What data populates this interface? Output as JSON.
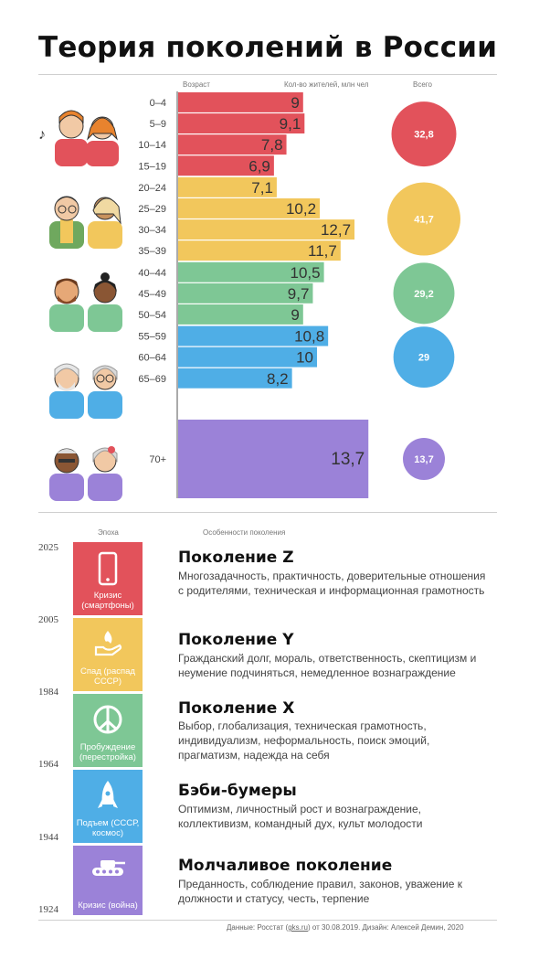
{
  "title": "Теория поколений в России",
  "chart_header": {
    "age": "Возраст",
    "population": "Кол-во жителей, млн чел",
    "total": "Всего"
  },
  "chart_data": {
    "type": "bar",
    "categories": [
      "0–4",
      "5–9",
      "10–14",
      "15–19",
      "20–24",
      "25–29",
      "30–34",
      "35–39",
      "40–44",
      "45–49",
      "50–54",
      "55–59",
      "60–64",
      "65–69",
      "70+"
    ],
    "values": [
      9,
      9.1,
      7.8,
      6.9,
      7.1,
      10.2,
      12.7,
      11.7,
      10.5,
      9.7,
      9,
      10.8,
      10,
      8.2,
      13.7
    ],
    "value_labels": [
      "9",
      "9,1",
      "7,8",
      "6,9",
      "7,1",
      "10,2",
      "12,7",
      "11,7",
      "10,5",
      "9,7",
      "9",
      "10,8",
      "10",
      "8,2",
      "13,7"
    ],
    "xlabel": "Кол-во жителей, млн чел",
    "ylabel": "Возраст",
    "groups": [
      {
        "from": 0,
        "to": 3,
        "color": "#e2525b",
        "total": 32.8,
        "total_label": "32,8"
      },
      {
        "from": 4,
        "to": 7,
        "color": "#f2c75c",
        "total": 41.7,
        "total_label": "41,7"
      },
      {
        "from": 8,
        "to": 10,
        "color": "#7ec795",
        "total": 29.2,
        "total_label": "29,2"
      },
      {
        "from": 11,
        "to": 13,
        "color": "#4faee6",
        "total": 29,
        "total_label": "29"
      },
      {
        "from": 14,
        "to": 14,
        "color": "#9b82d8",
        "total": 13.7,
        "total_label": "13,7"
      }
    ]
  },
  "section_header": {
    "era": "Эпоха",
    "features": "Особенности поколения"
  },
  "years": [
    "2025",
    "2005",
    "1984",
    "1964",
    "1944",
    "1924"
  ],
  "generations": [
    {
      "title": "Поколение Z",
      "desc": "Многозадачность, практичность, доверительные отношения с родителями, техническая и информационная грамотность",
      "era": "Кризис (смартфоны)",
      "color": "#e2525b",
      "icon": "smartphone-icon"
    },
    {
      "title": "Поколение Y",
      "desc": "Гражданский долг, мораль, ответственность, скептицизм и неумение подчиняться, немедленное вознаграждение",
      "era": "Спад (распад СССР)",
      "color": "#f2c75c",
      "icon": "flame-hand-icon"
    },
    {
      "title": "Поколение X",
      "desc": "Выбор, глобализация, техническая грамотность, индивидуализм, неформальность, поиск эмоций, прагматизм, надежда на себя",
      "era": "Пробуждение (перестройка)",
      "color": "#7ec795",
      "icon": "peace-icon"
    },
    {
      "title": "Бэби-бумеры",
      "desc": "Оптимизм, личностный рост и вознаграждение, коллективизм, командный дух, культ молодости",
      "era": "Подъем (СССР, космос)",
      "color": "#4faee6",
      "icon": "rocket-icon"
    },
    {
      "title": "Молчаливое поколение",
      "desc": "Преданность, соблюдение правил, законов, уважение к должности и статусу, честь, терпение",
      "era": "Кризис (война)",
      "color": "#9b82d8",
      "icon": "tank-icon"
    }
  ],
  "footer": {
    "prefix": "Данные: Росстат (",
    "link": "gks.ru",
    "suffix": ") от 30.08.2019. Дизайн: Алексей Демин, 2020"
  }
}
